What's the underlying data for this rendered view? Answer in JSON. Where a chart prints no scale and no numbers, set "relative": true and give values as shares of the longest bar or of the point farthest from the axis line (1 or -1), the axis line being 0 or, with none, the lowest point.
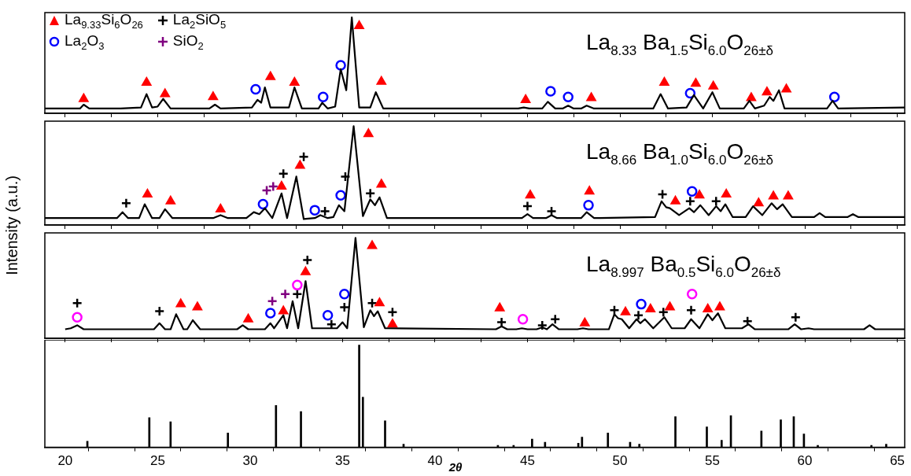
{
  "chart_data": [
    {
      "type": "line",
      "title": "La$_{8.33}$ Ba$_{1.5}$Si$_{6.0}$O$_{26±δ}$",
      "ylabel": "Intensity (a.u.)",
      "relative": true,
      "legend": "top left",
      "tick_labels": false,
      "xlim": [
        18.9,
        65.4
      ],
      "xticks": [
        20,
        {
          "value": 22.5,
          "label": null
        },
        25,
        {
          "value": 27.5,
          "label": null
        },
        30,
        {
          "value": 32.5,
          "label": null
        },
        35,
        {
          "value": 37.5,
          "label": null
        },
        40,
        {
          "value": 42.5,
          "label": null
        },
        45,
        {
          "value": 47.5,
          "label": null
        },
        50,
        {
          "value": 52.5,
          "label": null
        },
        55,
        {
          "value": 57.5,
          "label": null
        },
        60,
        {
          "value": 62.5,
          "label": null
        },
        65
      ],
      "series": [
        {
          "type": "line",
          "color": "#000000",
          "marker": "none",
          "x": [
            18.9,
            20.8,
            21.0,
            21.3,
            23,
            24.1,
            24.4,
            24.7,
            25.0,
            25.3,
            25.7,
            27.8,
            28.1,
            28.4,
            30.1,
            30.4,
            30.6,
            30.8,
            31.1,
            32.1,
            32.4,
            32.8,
            33.7,
            33.9,
            34.2,
            34.6,
            34.9,
            35.2,
            35.5,
            35.9,
            36.5,
            36.8,
            37.2,
            44.5,
            44.8,
            45.1,
            45.8,
            46.1,
            46.5,
            46.9,
            47.2,
            47.5,
            47.9,
            48.2,
            48.6,
            51.8,
            52.2,
            52.6,
            53.6,
            54.0,
            54.5,
            55.0,
            55.4,
            56.7,
            57.0,
            57.3,
            57.8,
            58.1,
            58.3,
            58.6,
            58.9,
            61.2,
            61.5,
            61.8,
            65.4
          ],
          "values": [
            0.05,
            0.05,
            0.09,
            0.05,
            0.05,
            0.06,
            0.2,
            0.06,
            0.07,
            0.15,
            0.05,
            0.05,
            0.09,
            0.05,
            0.06,
            0.14,
            0.11,
            0.27,
            0.06,
            0.06,
            0.27,
            0.05,
            0.05,
            0.11,
            0.05,
            0.07,
            0.46,
            0.24,
            1.0,
            0.06,
            0.06,
            0.22,
            0.05,
            0.05,
            0.06,
            0.05,
            0.05,
            0.12,
            0.05,
            0.05,
            0.08,
            0.05,
            0.05,
            0.08,
            0.05,
            0.05,
            0.2,
            0.05,
            0.06,
            0.19,
            0.05,
            0.22,
            0.05,
            0.05,
            0.13,
            0.05,
            0.08,
            0.17,
            0.13,
            0.24,
            0.05,
            0.05,
            0.13,
            0.05,
            0.06
          ]
        },
        {
          "type": "scatter",
          "name": "La$_{9.33}$Si$_{6}$O$_{26}$",
          "color": "#ff0000",
          "marker": "triangle",
          "x": [
            21.0,
            24.4,
            25.4,
            28.0,
            31.1,
            32.4,
            35.9,
            37.1,
            44.9,
            48.45,
            52.4,
            54.1,
            55.05,
            57.1,
            57.95,
            59.0
          ],
          "values": [
            0.15,
            0.32,
            0.2,
            0.17,
            0.38,
            0.32,
            0.91,
            0.33,
            0.14,
            0.16,
            0.32,
            0.31,
            0.28,
            0.16,
            0.22,
            0.25
          ]
        },
        {
          "type": "scatter",
          "name": "La$_{2}$O$_{3}$",
          "color": "#0000ff",
          "marker": "circle",
          "x": [
            30.3,
            33.95,
            34.9,
            46.25,
            47.2,
            53.8,
            61.6
          ],
          "values": [
            0.25,
            0.17,
            0.5,
            0.23,
            0.17,
            0.21,
            0.17
          ]
        },
        {
          "type": "scatter",
          "name": "La$_{2}$SiO$_{5}$",
          "color": "#000000",
          "marker": "cross"
        },
        {
          "type": "scatter",
          "name": "SiO$_{2}$",
          "color": "#800080",
          "marker": "cross"
        }
      ]
    },
    {
      "type": "line",
      "title": "La$_{8.66}$ Ba$_{1.0}$Si$_{6.0}$O$_{26±δ}$",
      "relative": true,
      "tick_labels": false,
      "xlim": [
        18.9,
        65.4
      ],
      "xticks": [
        20,
        {
          "value": 22.5,
          "label": null
        },
        25,
        {
          "value": 27.5,
          "label": null
        },
        30,
        {
          "value": 32.5,
          "label": null
        },
        35,
        {
          "value": 37.5,
          "label": null
        },
        40,
        {
          "value": 42.5,
          "label": null
        },
        45,
        {
          "value": 47.5,
          "label": null
        },
        50,
        {
          "value": 52.5,
          "label": null
        },
        55,
        {
          "value": 57.5,
          "label": null
        },
        60,
        {
          "value": 62.5,
          "label": null
        },
        65
      ],
      "series": [
        {
          "type": "line",
          "color": "#000000",
          "marker": "none",
          "x": [
            18.9,
            22.8,
            23.1,
            23.4,
            24.0,
            24.3,
            24.7,
            25.1,
            25.4,
            25.8,
            28.0,
            28.4,
            28.8,
            29.8,
            30.2,
            30.5,
            30.8,
            31.2,
            31.7,
            32.0,
            32.5,
            32.9,
            33.5,
            33.8,
            34.2,
            34.5,
            34.8,
            35.1,
            35.6,
            36.1,
            36.5,
            36.75,
            37.0,
            37.4,
            44.7,
            45.0,
            45.3,
            46.0,
            46.3,
            46.6,
            47.9,
            48.2,
            48.6,
            51.9,
            52.25,
            52.5,
            52.7,
            53.2,
            53.75,
            54.0,
            54.35,
            54.8,
            55.2,
            55.45,
            55.7,
            56.1,
            56.8,
            57.2,
            57.7,
            58.2,
            58.5,
            58.8,
            59.3,
            60.5,
            60.8,
            61.1,
            62.3,
            62.6,
            62.9,
            65.4
          ],
          "values": [
            0.07,
            0.07,
            0.13,
            0.07,
            0.07,
            0.21,
            0.07,
            0.07,
            0.16,
            0.07,
            0.07,
            0.1,
            0.07,
            0.07,
            0.13,
            0.11,
            0.17,
            0.07,
            0.32,
            0.07,
            0.49,
            0.06,
            0.07,
            0.1,
            0.07,
            0.08,
            0.2,
            0.14,
            1.0,
            0.09,
            0.26,
            0.2,
            0.28,
            0.07,
            0.07,
            0.11,
            0.07,
            0.07,
            0.1,
            0.07,
            0.07,
            0.13,
            0.07,
            0.08,
            0.24,
            0.18,
            0.17,
            0.1,
            0.17,
            0.13,
            0.2,
            0.1,
            0.19,
            0.14,
            0.21,
            0.08,
            0.08,
            0.19,
            0.1,
            0.22,
            0.16,
            0.21,
            0.08,
            0.08,
            0.12,
            0.08,
            0.08,
            0.11,
            0.08,
            0.08
          ]
        },
        {
          "type": "scatter",
          "color": "#ff0000",
          "marker": "triangle",
          "x": [
            24.45,
            25.7,
            28.4,
            31.7,
            32.7,
            36.4,
            37.1,
            45.15,
            48.35,
            53.0,
            54.3,
            55.75,
            57.5,
            58.3,
            59.1
          ],
          "values": [
            0.31,
            0.24,
            0.16,
            0.39,
            0.6,
            0.92,
            0.41,
            0.3,
            0.34,
            0.24,
            0.3,
            0.31,
            0.22,
            0.29,
            0.29
          ]
        },
        {
          "type": "scatter",
          "color": "#0000ff",
          "marker": "circle",
          "x": [
            30.7,
            33.5,
            34.9,
            48.3,
            53.9
          ],
          "values": [
            0.21,
            0.15,
            0.3,
            0.2,
            0.34
          ]
        },
        {
          "type": "scatter",
          "color": "#000000",
          "marker": "cross",
          "x": [
            23.3,
            31.8,
            32.9,
            34.05,
            35.15,
            36.5,
            45.0,
            46.3,
            52.3,
            53.8,
            55.2
          ],
          "values": [
            0.22,
            0.52,
            0.69,
            0.14,
            0.49,
            0.32,
            0.19,
            0.14,
            0.31,
            0.24,
            0.24
          ]
        },
        {
          "type": "scatter",
          "color": "#800080",
          "marker": "cross",
          "x": [
            30.9,
            31.25
          ],
          "values": [
            0.35,
            0.39
          ]
        }
      ]
    },
    {
      "type": "line",
      "title": "La$_{8.997}$ Ba$_{0.5}$Si$_{6.0}$O$_{26±δ}$",
      "relative": true,
      "tick_labels": false,
      "xlim": [
        18.9,
        65.4
      ],
      "xticks": [
        20,
        {
          "value": 22.5,
          "label": null
        },
        25,
        {
          "value": 27.5,
          "label": null
        },
        30,
        {
          "value": 32.5,
          "label": null
        },
        35,
        {
          "value": 37.5,
          "label": null
        },
        40,
        {
          "value": 42.5,
          "label": null
        },
        45,
        {
          "value": 47.5,
          "label": null
        },
        50,
        {
          "value": 52.5,
          "label": null
        },
        55,
        {
          "value": 57.5,
          "label": null
        },
        60,
        {
          "value": 62.5,
          "label": null
        },
        65
      ],
      "series": [
        {
          "type": "line",
          "color": "#000000",
          "marker": "none",
          "x": [
            20.0,
            20.3,
            20.65,
            21.0,
            24.8,
            25.1,
            25.4,
            25.7,
            26.0,
            26.4,
            26.6,
            26.9,
            27.3,
            29.3,
            29.6,
            29.9,
            30.8,
            31.1,
            31.3,
            31.8,
            32.0,
            32.3,
            32.6,
            33.0,
            33.35,
            34.3,
            34.7,
            35.0,
            35.25,
            35.7,
            36.15,
            36.5,
            36.7,
            36.9,
            37.3,
            43.3,
            43.6,
            43.9,
            44.4,
            44.7,
            45.0,
            45.5,
            45.8,
            46.05,
            46.35,
            46.7,
            47.7,
            48.0,
            48.3,
            49.4,
            49.7,
            49.9,
            50.1,
            50.5,
            50.9,
            51.1,
            51.35,
            51.8,
            52.4,
            52.8,
            53.5,
            53.85,
            54.3,
            54.75,
            55.0,
            55.3,
            55.7,
            56.6,
            56.95,
            57.3,
            59.1,
            59.45,
            59.8,
            60.2,
            60.5,
            63.2,
            63.5,
            63.8,
            65.4
          ],
          "values": [
            0.09,
            0.1,
            0.13,
            0.09,
            0.09,
            0.15,
            0.09,
            0.09,
            0.24,
            0.09,
            0.09,
            0.18,
            0.09,
            0.09,
            0.13,
            0.09,
            0.09,
            0.15,
            0.1,
            0.23,
            0.1,
            0.37,
            0.1,
            0.57,
            0.1,
            0.1,
            0.1,
            0.16,
            0.1,
            1.0,
            0.11,
            0.28,
            0.22,
            0.27,
            0.1,
            0.09,
            0.12,
            0.09,
            0.09,
            0.1,
            0.09,
            0.09,
            0.11,
            0.09,
            0.14,
            0.09,
            0.09,
            0.1,
            0.09,
            0.09,
            0.24,
            0.2,
            0.19,
            0.1,
            0.19,
            0.15,
            0.19,
            0.1,
            0.21,
            0.1,
            0.1,
            0.19,
            0.1,
            0.24,
            0.18,
            0.25,
            0.1,
            0.1,
            0.14,
            0.09,
            0.09,
            0.14,
            0.09,
            0.1,
            0.09,
            0.09,
            0.13,
            0.09,
            0.09
          ]
        },
        {
          "type": "scatter",
          "color": "#ff0000",
          "marker": "triangle",
          "x": [
            26.25,
            27.15,
            29.9,
            31.8,
            33.0,
            36.6,
            37.0,
            37.7,
            43.5,
            48.1,
            50.3,
            51.65,
            52.7,
            54.75,
            55.4
          ],
          "values": [
            0.34,
            0.31,
            0.19,
            0.27,
            0.66,
            0.92,
            0.35,
            0.14,
            0.3,
            0.15,
            0.26,
            0.29,
            0.31,
            0.29,
            0.31
          ]
        },
        {
          "type": "scatter",
          "color": "#0000ff",
          "marker": "circle",
          "x": [
            31.1,
            34.2,
            35.1,
            51.15
          ],
          "values": [
            0.25,
            0.23,
            0.44,
            0.34
          ]
        },
        {
          "type": "scatter",
          "color": "#ff00ff",
          "marker": "circle",
          "x": [
            20.65,
            32.55,
            44.75,
            53.9
          ],
          "values": [
            0.21,
            0.53,
            0.19,
            0.44
          ]
        },
        {
          "type": "scatter",
          "color": "#000000",
          "marker": "cross",
          "x": [
            20.65,
            25.1,
            32.55,
            33.1,
            34.4,
            35.1,
            36.6,
            37.7,
            43.6,
            45.8,
            46.5,
            49.7,
            51.0,
            52.35,
            53.85,
            56.9,
            59.5
          ],
          "values": [
            0.35,
            0.27,
            0.44,
            0.78,
            0.14,
            0.31,
            0.35,
            0.26,
            0.16,
            0.13,
            0.19,
            0.28,
            0.23,
            0.26,
            0.28,
            0.17,
            0.21
          ]
        },
        {
          "type": "scatter",
          "color": "#800080",
          "marker": "cross",
          "x": [
            31.2,
            31.9
          ],
          "values": [
            0.37,
            0.44
          ]
        }
      ]
    },
    {
      "type": "bar",
      "xlabel": "2θ",
      "relative": true,
      "tick_labels": "x",
      "color": "#000000",
      "xlim": [
        18.9,
        65.4
      ],
      "xticks": [
        20,
        {
          "value": 22.5,
          "label": null
        },
        25,
        {
          "value": 27.5,
          "label": null
        },
        30,
        {
          "value": 32.5,
          "label": null
        },
        35,
        {
          "value": 37.5,
          "label": null
        },
        40,
        {
          "value": 42.5,
          "label": null
        },
        45,
        {
          "value": 47.5,
          "label": null
        },
        50,
        {
          "value": 52.5,
          "label": null
        },
        55,
        {
          "value": 57.5,
          "label": null
        },
        60,
        {
          "value": 62.5,
          "label": null
        },
        65
      ],
      "x": [
        21.2,
        24.55,
        25.7,
        28.8,
        31.4,
        32.75,
        35.9,
        36.1,
        37.3,
        38.3,
        43.4,
        44.25,
        45.25,
        45.95,
        47.75,
        47.95,
        49.35,
        50.55,
        51.05,
        53.0,
        54.7,
        55.5,
        56.0,
        57.65,
        58.7,
        59.4,
        59.95,
        60.7,
        63.6,
        64.4
      ],
      "values": [
        0.06,
        0.29,
        0.25,
        0.14,
        0.41,
        0.35,
        1.0,
        0.49,
        0.26,
        0.03,
        0.02,
        0.02,
        0.08,
        0.05,
        0.04,
        0.1,
        0.14,
        0.05,
        0.03,
        0.3,
        0.2,
        0.07,
        0.31,
        0.16,
        0.27,
        0.3,
        0.13,
        0.02,
        0.02,
        0.03
      ]
    }
  ]
}
